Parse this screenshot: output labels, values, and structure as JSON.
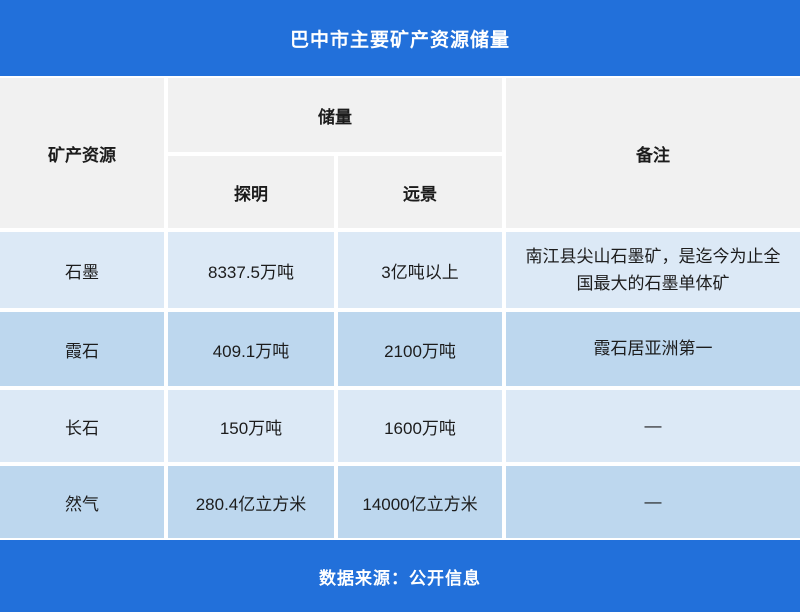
{
  "title": "巴中市主要矿产资源储量",
  "table": {
    "headers": {
      "mineral": "矿产资源",
      "reserves": "储量",
      "proven": "探明",
      "prospective": "远景",
      "remark": "备注"
    },
    "rows": [
      {
        "mineral": "石墨",
        "proven": "8337.5万吨",
        "prospective": "3亿吨以上",
        "remark": "南江县尖山石墨矿，是迄今为止全国最大的石墨单体矿"
      },
      {
        "mineral": "霞石",
        "proven": "409.1万吨",
        "prospective": "2100万吨",
        "remark": "霞石居亚洲第一"
      },
      {
        "mineral": "长石",
        "proven": "150万吨",
        "prospective": "1600万吨",
        "remark": "—"
      },
      {
        "mineral": "然气",
        "proven": "280.4亿立方米",
        "prospective": "14000亿立方米",
        "remark": "—"
      }
    ]
  },
  "footer": {
    "source_label": "数据来源：公开信息"
  },
  "colors": {
    "accent_blue": "#2270DA",
    "header_gray": "#F1F1F1",
    "row_light": "#DCE9F6",
    "row_medium": "#BDD7EE",
    "text_dark": "#1C1C1C",
    "title_text": "#FFFFFF"
  }
}
